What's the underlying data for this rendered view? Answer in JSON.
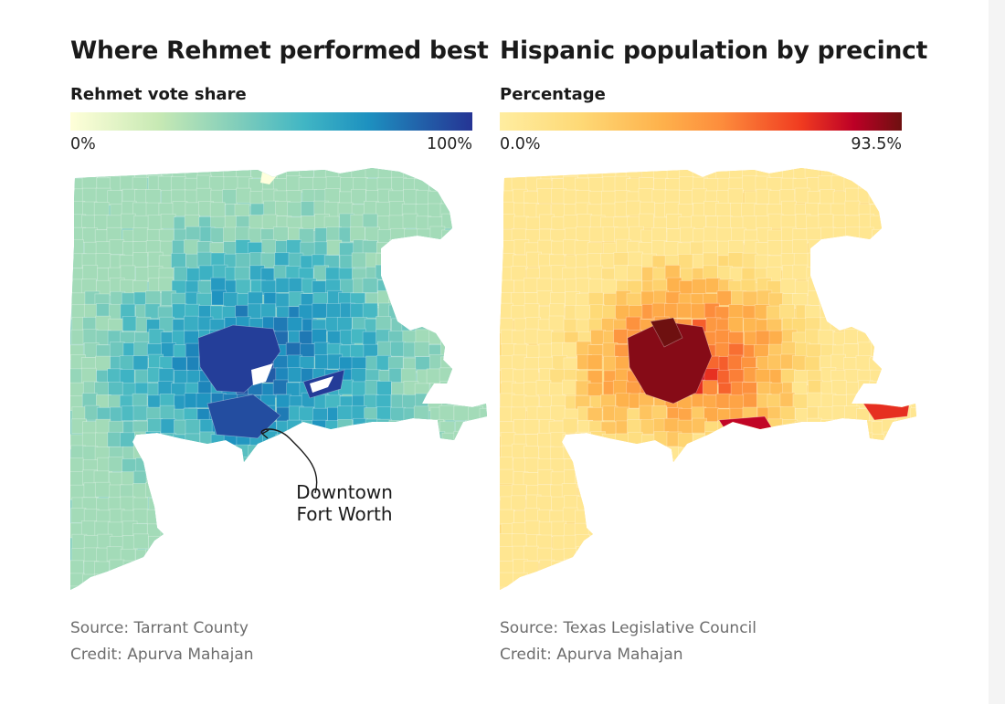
{
  "left_panel": {
    "title": "Where Rehmet performed best",
    "legend_label": "Rehmet vote share",
    "legend_min": "0%",
    "legend_max": "100%",
    "annotation_line1": "Downtown",
    "annotation_line2": "Fort Worth",
    "source": "Source: Tarrant County",
    "credit": "Credit: Apurva Mahajan",
    "ramp_colors": [
      "#ffffd9",
      "#c7e9b4",
      "#7fcdbb",
      "#41b6c4",
      "#1d91c0",
      "#225ea8",
      "#253494"
    ]
  },
  "right_panel": {
    "title": "Hispanic population by precinct",
    "legend_label": "Percentage",
    "legend_min": "0.0%",
    "legend_max": "93.5%",
    "source": "Source: Texas Legislative Council",
    "credit": "Credit: Apurva Mahajan",
    "ramp_colors": [
      "#ffeda0",
      "#fed976",
      "#feb24c",
      "#fd8d3c",
      "#f03b20",
      "#bd0026",
      "#6e1010"
    ]
  }
}
